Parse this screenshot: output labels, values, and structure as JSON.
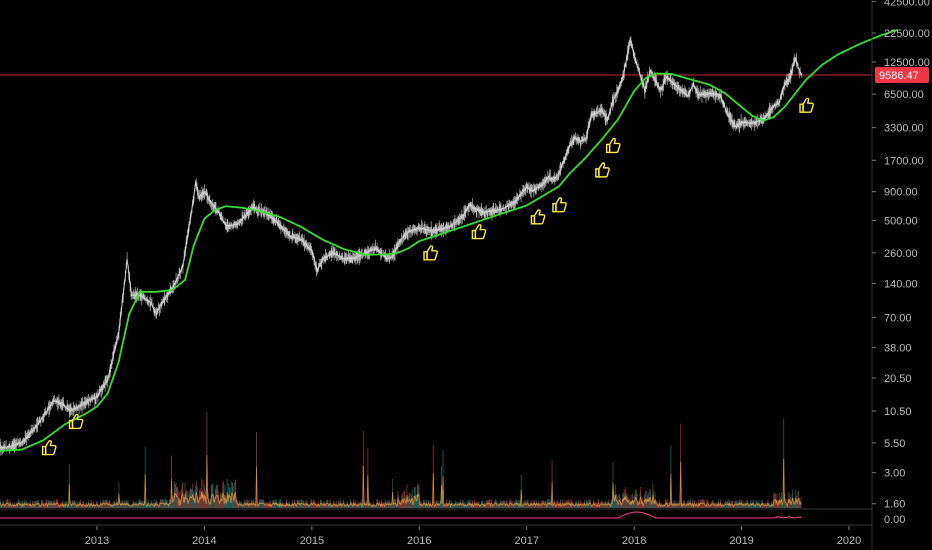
{
  "chart_data": {
    "type": "line",
    "title": "",
    "xlabel": "",
    "ylabel": "",
    "y_scale": "log",
    "ylim": [
      1.2,
      50000
    ],
    "xlim": [
      2012.0,
      2020.65
    ],
    "grid": false,
    "legend": "none",
    "y_ticks": [
      {
        "value": 42500,
        "label": "42500.00"
      },
      {
        "value": 22500,
        "label": "22500.00"
      },
      {
        "value": 12500,
        "label": "12500.00"
      },
      {
        "value": 6500,
        "label": "6500.00"
      },
      {
        "value": 3300,
        "label": "3300.00"
      },
      {
        "value": 1700,
        "label": "1700.00"
      },
      {
        "value": 900,
        "label": "900.00"
      },
      {
        "value": 500,
        "label": "500.00"
      },
      {
        "value": 260,
        "label": "260.00"
      },
      {
        "value": 140,
        "label": "140.00"
      },
      {
        "value": 70,
        "label": "70.00"
      },
      {
        "value": 38,
        "label": "38.00"
      },
      {
        "value": 20.5,
        "label": "20.50"
      },
      {
        "value": 10.5,
        "label": "10.50"
      },
      {
        "value": 5.5,
        "label": "5.50"
      },
      {
        "value": 3.0,
        "label": "3.00"
      },
      {
        "value": 1.6,
        "label": "1.60"
      }
    ],
    "indicator_tick": "0.00",
    "x_ticks": [
      {
        "value": 2013,
        "label": "2013"
      },
      {
        "value": 2014,
        "label": "2014"
      },
      {
        "value": 2015,
        "label": "2015"
      },
      {
        "value": 2016,
        "label": "2016"
      },
      {
        "value": 2017,
        "label": "2017"
      },
      {
        "value": 2018,
        "label": "2018"
      },
      {
        "value": 2019,
        "label": "2019"
      },
      {
        "value": 2020,
        "label": "2020"
      }
    ],
    "current_price": {
      "value": 9586.47,
      "label": "9586.47",
      "color": "#f23645"
    },
    "series": [
      {
        "color": "#d6d6d6",
        "points": [
          [
            2012.0,
            5.0
          ],
          [
            2012.15,
            5.0
          ],
          [
            2012.3,
            5.5
          ],
          [
            2012.45,
            8.0
          ],
          [
            2012.6,
            13.0
          ],
          [
            2012.68,
            12.0
          ],
          [
            2012.75,
            10.5
          ],
          [
            2012.83,
            11.5
          ],
          [
            2012.92,
            13.0
          ],
          [
            2013.0,
            14.0
          ],
          [
            2013.1,
            20.0
          ],
          [
            2013.2,
            50.0
          ],
          [
            2013.26,
            150.0
          ],
          [
            2013.28,
            230.0
          ],
          [
            2013.32,
            110.0
          ],
          [
            2013.4,
            110.0
          ],
          [
            2013.5,
            95.0
          ],
          [
            2013.55,
            75.0
          ],
          [
            2013.62,
            100.0
          ],
          [
            2013.7,
            125.0
          ],
          [
            2013.8,
            200.0
          ],
          [
            2013.85,
            400.0
          ],
          [
            2013.9,
            800.0
          ],
          [
            2013.92,
            1100.0
          ],
          [
            2013.95,
            800.0
          ],
          [
            2014.0,
            900.0
          ],
          [
            2014.05,
            750.0
          ],
          [
            2014.1,
            650.0
          ],
          [
            2014.15,
            560.0
          ],
          [
            2014.2,
            450.0
          ],
          [
            2014.3,
            460.0
          ],
          [
            2014.4,
            580.0
          ],
          [
            2014.45,
            650.0
          ],
          [
            2014.5,
            620.0
          ],
          [
            2014.6,
            560.0
          ],
          [
            2014.7,
            460.0
          ],
          [
            2014.8,
            360.0
          ],
          [
            2014.9,
            340.0
          ],
          [
            2015.0,
            270.0
          ],
          [
            2015.05,
            180.0
          ],
          [
            2015.1,
            230.0
          ],
          [
            2015.2,
            260.0
          ],
          [
            2015.3,
            230.0
          ],
          [
            2015.4,
            235.0
          ],
          [
            2015.5,
            260.0
          ],
          [
            2015.6,
            285.0
          ],
          [
            2015.7,
            230.0
          ],
          [
            2015.75,
            240.0
          ],
          [
            2015.82,
            330.0
          ],
          [
            2015.9,
            400.0
          ],
          [
            2016.0,
            430.0
          ],
          [
            2016.1,
            410.0
          ],
          [
            2016.2,
            420.0
          ],
          [
            2016.3,
            450.0
          ],
          [
            2016.4,
            540.0
          ],
          [
            2016.47,
            700.0
          ],
          [
            2016.5,
            650.0
          ],
          [
            2016.6,
            590.0
          ],
          [
            2016.7,
            610.0
          ],
          [
            2016.8,
            650.0
          ],
          [
            2016.9,
            750.0
          ],
          [
            2017.0,
            980.0
          ],
          [
            2017.05,
            900.0
          ],
          [
            2017.15,
            1050.0
          ],
          [
            2017.2,
            1200.0
          ],
          [
            2017.25,
            1150.0
          ],
          [
            2017.3,
            1300.0
          ],
          [
            2017.4,
            2300.0
          ],
          [
            2017.45,
            2700.0
          ],
          [
            2017.5,
            2500.0
          ],
          [
            2017.55,
            2600.0
          ],
          [
            2017.6,
            4200.0
          ],
          [
            2017.7,
            4700.0
          ],
          [
            2017.75,
            3800.0
          ],
          [
            2017.8,
            5600.0
          ],
          [
            2017.85,
            7000.0
          ],
          [
            2017.9,
            9500.0
          ],
          [
            2017.95,
            17000.0
          ],
          [
            2017.97,
            19500.0
          ],
          [
            2018.0,
            14000.0
          ],
          [
            2018.05,
            10000.0
          ],
          [
            2018.1,
            7000.0
          ],
          [
            2018.15,
            10500.0
          ],
          [
            2018.2,
            8500.0
          ],
          [
            2018.25,
            7000.0
          ],
          [
            2018.3,
            9300.0
          ],
          [
            2018.4,
            7500.0
          ],
          [
            2018.5,
            6300.0
          ],
          [
            2018.55,
            7900.0
          ],
          [
            2018.6,
            6400.0
          ],
          [
            2018.7,
            6600.0
          ],
          [
            2018.8,
            6400.0
          ],
          [
            2018.87,
            4300.0
          ],
          [
            2018.95,
            3300.0
          ],
          [
            2019.0,
            3700.0
          ],
          [
            2019.1,
            3600.0
          ],
          [
            2019.2,
            3900.0
          ],
          [
            2019.3,
            5100.0
          ],
          [
            2019.35,
            5500.0
          ],
          [
            2019.4,
            8000.0
          ],
          [
            2019.45,
            9000.0
          ],
          [
            2019.5,
            13500.0
          ],
          [
            2019.53,
            11000.0
          ],
          [
            2019.56,
            9586.47
          ]
        ]
      },
      {
        "color": "#33e02d",
        "points": [
          [
            2012.0,
            4.6
          ],
          [
            2012.3,
            4.8
          ],
          [
            2012.5,
            5.8
          ],
          [
            2012.7,
            8.0
          ],
          [
            2012.9,
            10.0
          ],
          [
            2013.0,
            11.5
          ],
          [
            2013.1,
            15.0
          ],
          [
            2013.2,
            28.0
          ],
          [
            2013.3,
            75.0
          ],
          [
            2013.4,
            118.0
          ],
          [
            2013.55,
            118.0
          ],
          [
            2013.7,
            122.0
          ],
          [
            2013.82,
            150.0
          ],
          [
            2013.9,
            300.0
          ],
          [
            2014.0,
            520.0
          ],
          [
            2014.1,
            620.0
          ],
          [
            2014.2,
            670.0
          ],
          [
            2014.35,
            650.0
          ],
          [
            2014.5,
            610.0
          ],
          [
            2014.7,
            540.0
          ],
          [
            2014.9,
            440.0
          ],
          [
            2015.1,
            340.0
          ],
          [
            2015.3,
            280.0
          ],
          [
            2015.5,
            250.0
          ],
          [
            2015.7,
            252.0
          ],
          [
            2015.8,
            260.0
          ],
          [
            2015.9,
            285.0
          ],
          [
            2016.0,
            330.0
          ],
          [
            2016.2,
            380.0
          ],
          [
            2016.4,
            440.0
          ],
          [
            2016.6,
            510.0
          ],
          [
            2016.8,
            590.0
          ],
          [
            2017.0,
            680.0
          ],
          [
            2017.2,
            880.0
          ],
          [
            2017.3,
            1000.0
          ],
          [
            2017.4,
            1300.0
          ],
          [
            2017.55,
            1800.0
          ],
          [
            2017.7,
            2600.0
          ],
          [
            2017.85,
            3900.0
          ],
          [
            2018.0,
            6900.0
          ],
          [
            2018.1,
            8900.0
          ],
          [
            2018.2,
            9900.0
          ],
          [
            2018.35,
            9800.0
          ],
          [
            2018.5,
            8900.0
          ],
          [
            2018.7,
            7900.0
          ],
          [
            2018.85,
            6600.0
          ],
          [
            2019.0,
            5000.0
          ],
          [
            2019.1,
            4200.0
          ],
          [
            2019.2,
            3800.0
          ],
          [
            2019.3,
            4100.0
          ],
          [
            2019.4,
            5000.0
          ],
          [
            2019.5,
            6600.0
          ],
          [
            2019.6,
            8700.0
          ],
          [
            2019.75,
            11800.0
          ],
          [
            2019.9,
            14600.0
          ],
          [
            2020.1,
            18000.0
          ],
          [
            2020.3,
            21500.0
          ],
          [
            2020.45,
            24000.0
          ]
        ]
      }
    ],
    "markers": {
      "type": "thumbs-up",
      "color": "#ffeb3b",
      "points": [
        [
          2012.55,
          5.0
        ],
        [
          2012.8,
          8.5
        ],
        [
          2016.1,
          260.0
        ],
        [
          2016.55,
          400.0
        ],
        [
          2017.1,
          540.0
        ],
        [
          2017.3,
          690.0
        ],
        [
          2017.7,
          1400.0
        ],
        [
          2017.8,
          2300.0
        ],
        [
          2019.6,
          5200.0
        ]
      ]
    },
    "volume": {
      "up_color": "#26a69a",
      "down_color": "#ef5350",
      "line_color": "#f0a13a"
    },
    "indicator": {
      "line_color": "#ff3d8b"
    }
  }
}
